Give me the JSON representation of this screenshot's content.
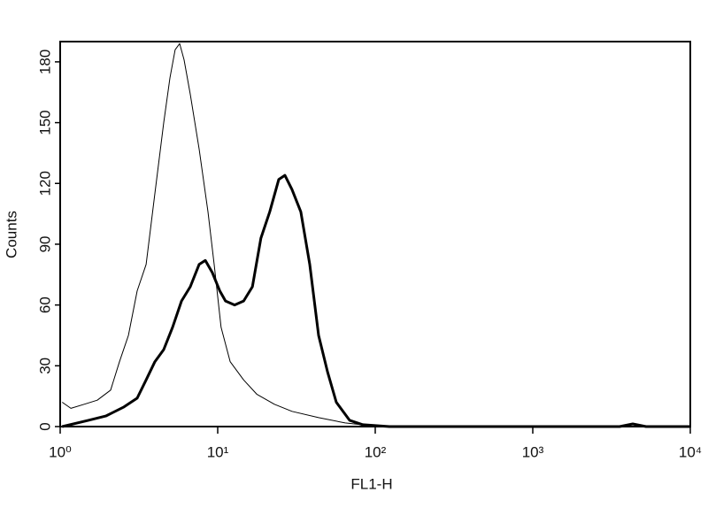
{
  "chart_data": {
    "type": "line",
    "x_label": "FL1-H",
    "y_label": "Counts",
    "xlim": [
      1,
      10000
    ],
    "xscale": "log",
    "xticks": [
      {
        "value": 1,
        "label": "10⁰"
      },
      {
        "value": 10,
        "label": "10¹"
      },
      {
        "value": 100,
        "label": "10²"
      },
      {
        "value": 1000,
        "label": "10³"
      },
      {
        "value": 10000,
        "label": "10⁴"
      }
    ],
    "ylim": [
      0,
      190
    ],
    "yticks": [
      0,
      30,
      60,
      90,
      120,
      150,
      180
    ],
    "series": [
      {
        "color": "#000000",
        "width": 1,
        "x": [
          1.03,
          1.17,
          1.42,
          1.72,
          2.09,
          2.38,
          2.71,
          3.08,
          3.51,
          3.99,
          4.54,
          4.97,
          5.37,
          5.73,
          6.12,
          6.7,
          7.62,
          8.67,
          9.5,
          10.5,
          12.0,
          14.6,
          17.7,
          22.9,
          29.6,
          43.7,
          64.4,
          95,
          267,
          10000
        ],
        "values": [
          12,
          9,
          11,
          13,
          18,
          32,
          45,
          67,
          80,
          115,
          150,
          172,
          186,
          189,
          181,
          164,
          137,
          106,
          80,
          49,
          32,
          23,
          16,
          11,
          7.5,
          4.4,
          1.8,
          0.4,
          0,
          0
        ]
      },
      {
        "color": "#000000",
        "width": 3,
        "x": [
          1.03,
          1.51,
          1.96,
          2.54,
          3.08,
          3.51,
          3.99,
          4.54,
          5.17,
          5.89,
          6.7,
          7.62,
          8.34,
          9.24,
          10.3,
          11.2,
          12.8,
          14.6,
          16.6,
          18.8,
          21.4,
          24.4,
          26.7,
          29.6,
          33.7,
          38.4,
          43.7,
          49.8,
          56.6,
          68.7,
          83.4,
          123,
          3556,
          4315,
          5236,
          10000
        ],
        "values": [
          0,
          3.1,
          5.3,
          9.7,
          14,
          23,
          32,
          38,
          49,
          62,
          69,
          80,
          82,
          76,
          67,
          62,
          60,
          62,
          69,
          93,
          106,
          122,
          124,
          117,
          106,
          80,
          45,
          27,
          12,
          3.1,
          0.9,
          0,
          0,
          1.3,
          0,
          0
        ]
      }
    ]
  }
}
